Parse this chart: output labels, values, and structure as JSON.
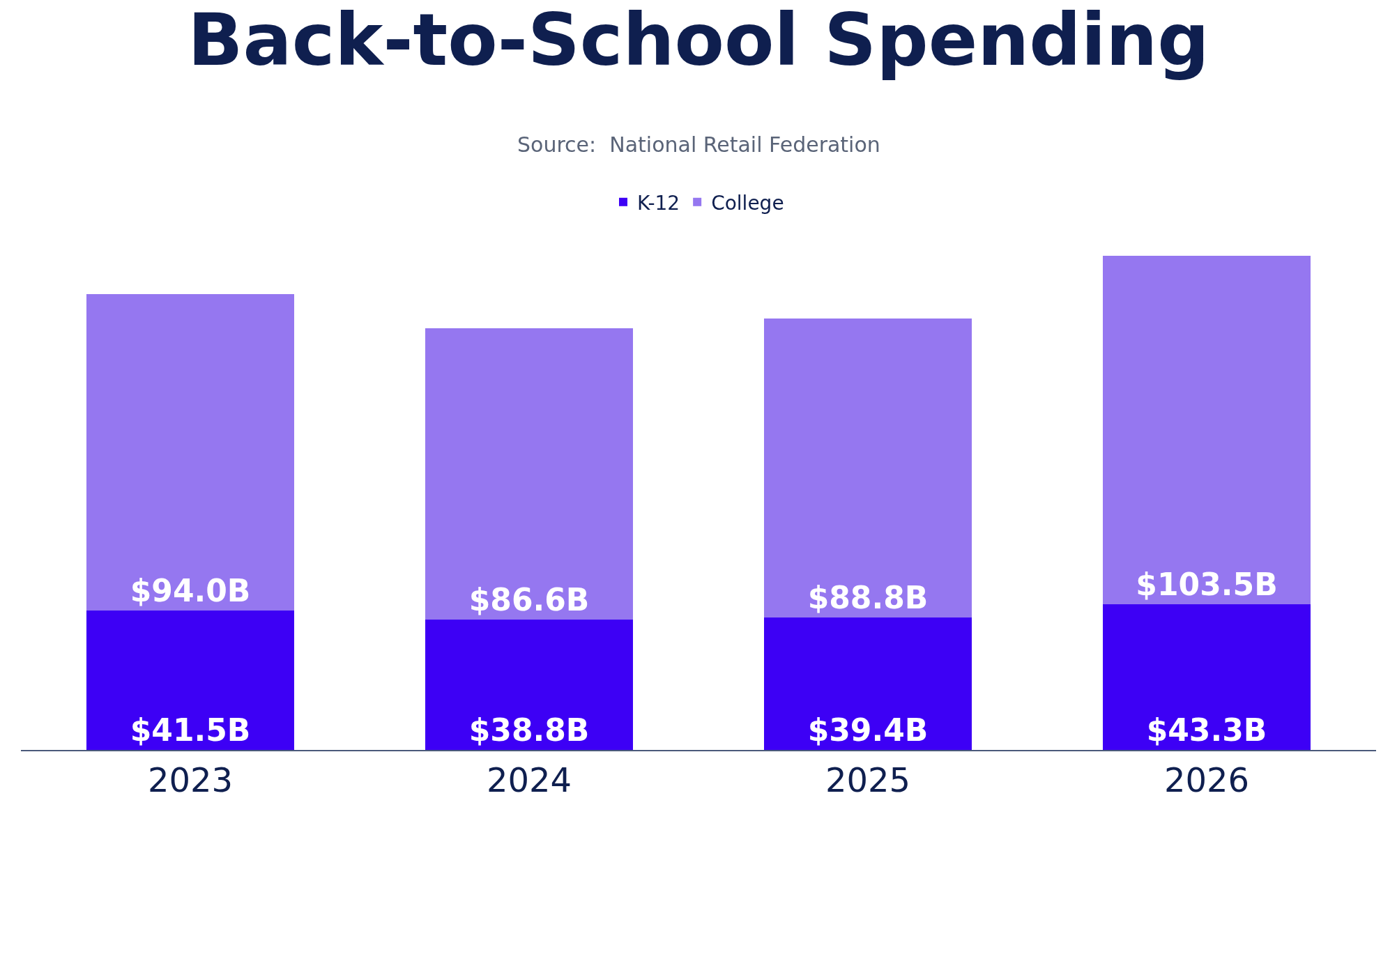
{
  "chart_data": {
    "type": "bar",
    "title": "Back-to-School Spending",
    "annotations": [
      "Source:  National Retail Federation"
    ],
    "categories": [
      "2023",
      "2024",
      "2025",
      "2026"
    ],
    "stacked": true,
    "legend": "top",
    "tick_labels": "x",
    "series": [
      {
        "name": "K-12",
        "color": "#3d00f5",
        "values": [
          41.5,
          38.8,
          39.4,
          43.3
        ],
        "value_labels": [
          "$41.5B",
          "$38.8B",
          "$39.4B",
          "$43.3B"
        ]
      },
      {
        "name": "College",
        "color": "#9577f0",
        "values": [
          94.0,
          86.6,
          88.8,
          103.5
        ],
        "value_labels": [
          "$94.0B",
          "$86.6B",
          "$88.8B",
          "$103.5B"
        ]
      }
    ]
  }
}
